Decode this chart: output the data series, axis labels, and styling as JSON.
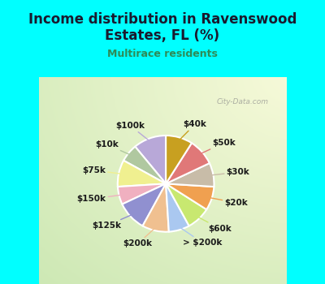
{
  "title": "Income distribution in Ravenswood\nEstates, FL (%)",
  "subtitle": "Multirace residents",
  "watermark": "City-Data.com",
  "labels": [
    "$100k",
    "$10k",
    "$75k",
    "$150k",
    "$125k",
    "$200k",
    "> $200k",
    "$60k",
    "$20k",
    "$30k",
    "$50k",
    "$40k"
  ],
  "values": [
    11,
    6,
    9,
    6,
    10,
    9,
    7,
    8,
    8,
    8,
    9,
    9
  ],
  "colors": [
    "#b8a8d8",
    "#b0c8a0",
    "#f0f090",
    "#f0b0c0",
    "#9090d0",
    "#f0c090",
    "#aac8f0",
    "#c8e870",
    "#f0a050",
    "#c8bca8",
    "#e07878",
    "#c8a020"
  ],
  "bg_color_outer": "#00ffff",
  "title_color": "#1a1a2e",
  "subtitle_color": "#2e8b57",
  "label_color": "#1a1a1a",
  "label_fontsize": 7.5
}
